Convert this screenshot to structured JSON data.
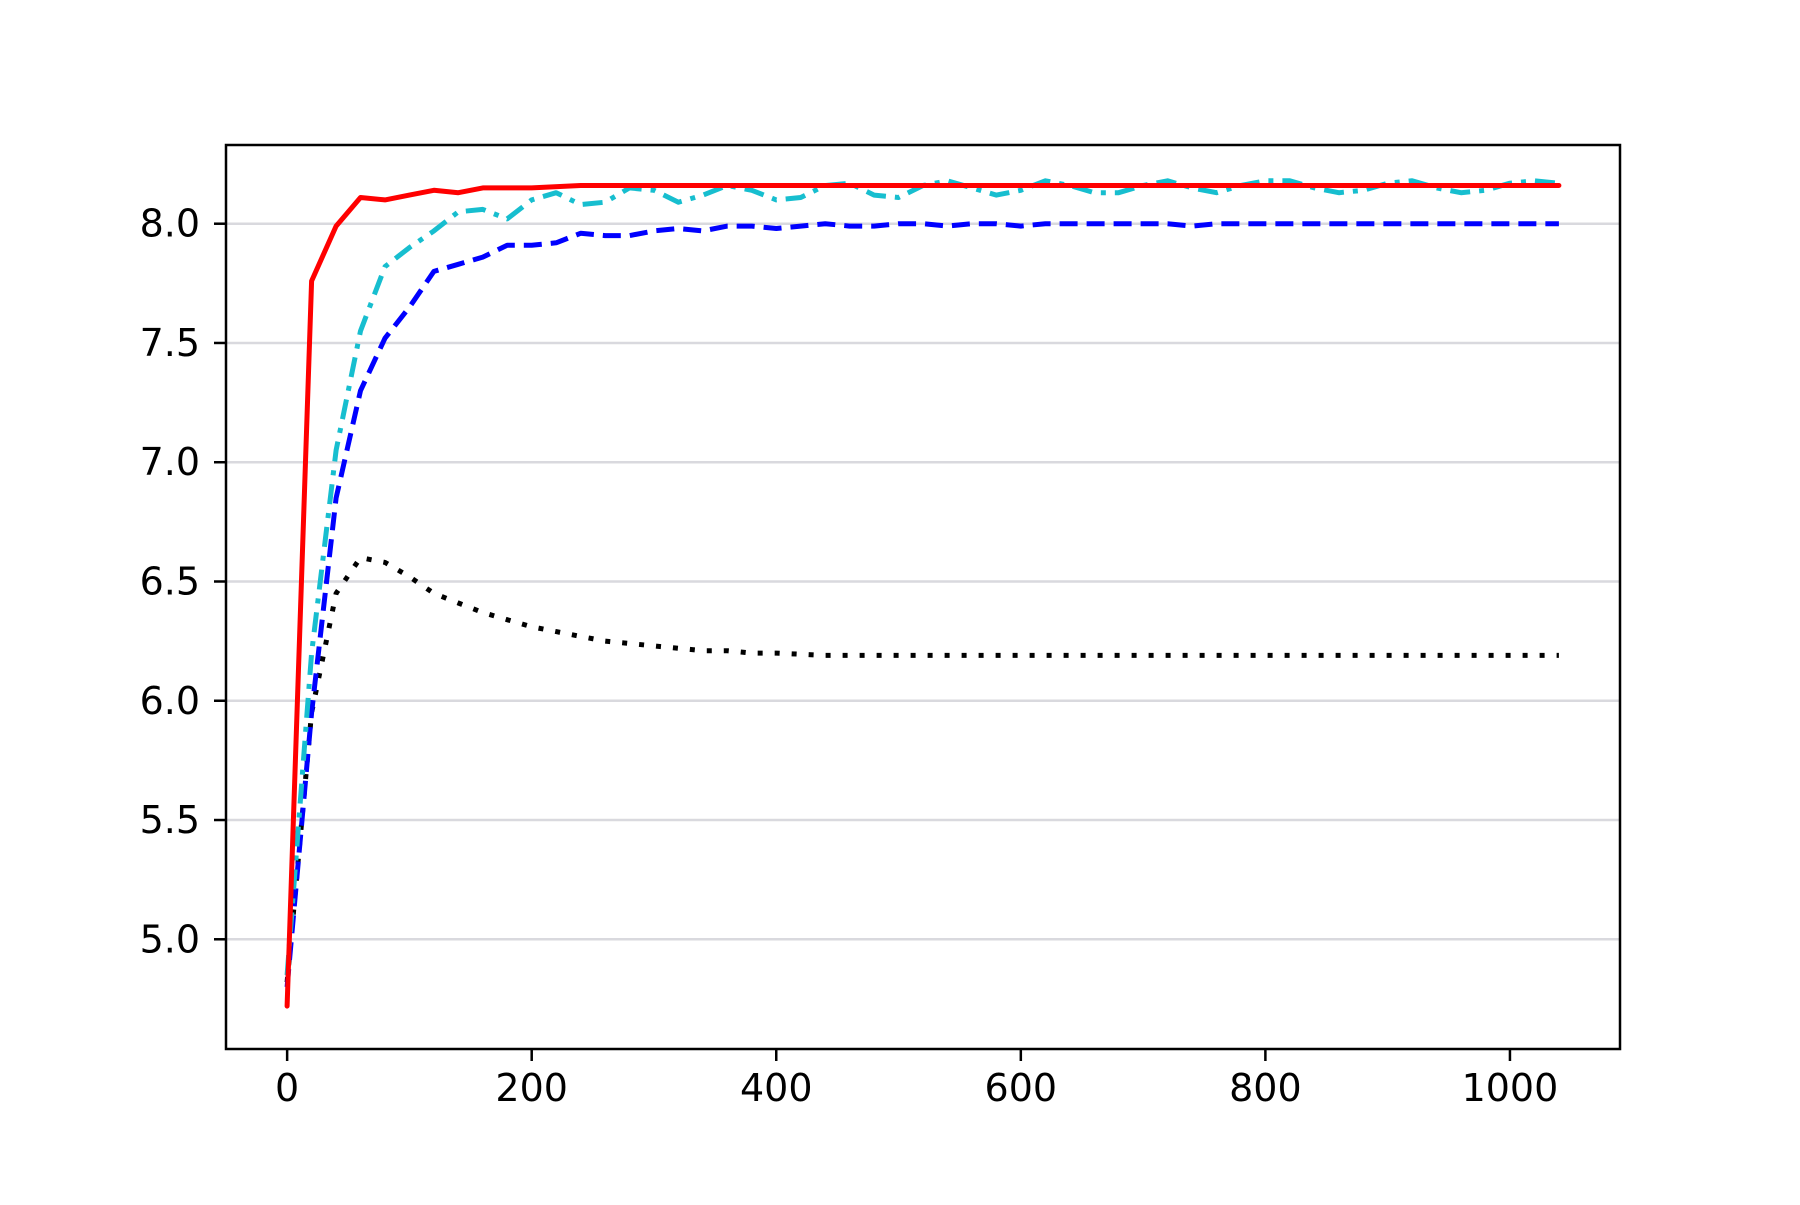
{
  "chart_data": {
    "type": "line",
    "title": "",
    "xlabel": "",
    "ylabel": "",
    "xlim": [
      -50,
      1090
    ],
    "ylim": [
      4.54,
      8.33
    ],
    "x_ticks": [
      0,
      200,
      400,
      600,
      800,
      1000
    ],
    "x_tick_labels": [
      "0",
      "200",
      "400",
      "600",
      "800",
      "1000"
    ],
    "y_ticks": [
      5.0,
      5.5,
      6.0,
      6.5,
      7.0,
      7.5,
      8.0
    ],
    "y_tick_labels": [
      "5.0",
      "5.5",
      "6.0",
      "6.5",
      "7.0",
      "7.5",
      "8.0"
    ],
    "grid": "horizontal",
    "legend": "none",
    "series": [
      {
        "style": "dotted",
        "color": "#000000",
        "points": [
          [
            0,
            4.82
          ],
          [
            20,
            5.95
          ],
          [
            40,
            6.45
          ],
          [
            60,
            6.6
          ],
          [
            80,
            6.58
          ],
          [
            100,
            6.52
          ],
          [
            120,
            6.45
          ],
          [
            140,
            6.41
          ],
          [
            160,
            6.37
          ],
          [
            180,
            6.34
          ],
          [
            200,
            6.31
          ],
          [
            220,
            6.29
          ],
          [
            240,
            6.27
          ],
          [
            260,
            6.25
          ],
          [
            280,
            6.24
          ],
          [
            300,
            6.23
          ],
          [
            320,
            6.22
          ],
          [
            340,
            6.21
          ],
          [
            360,
            6.21
          ],
          [
            380,
            6.2
          ],
          [
            400,
            6.2
          ],
          [
            440,
            6.19
          ],
          [
            480,
            6.19
          ],
          [
            520,
            6.19
          ],
          [
            560,
            6.19
          ],
          [
            600,
            6.19
          ],
          [
            640,
            6.19
          ],
          [
            680,
            6.19
          ],
          [
            720,
            6.19
          ],
          [
            760,
            6.19
          ],
          [
            800,
            6.19
          ],
          [
            840,
            6.19
          ],
          [
            880,
            6.19
          ],
          [
            920,
            6.19
          ],
          [
            960,
            6.19
          ],
          [
            1000,
            6.19
          ],
          [
            1040,
            6.19
          ]
        ]
      },
      {
        "style": "dashed",
        "color": "#0000ff",
        "points": [
          [
            0,
            4.8
          ],
          [
            20,
            5.95
          ],
          [
            40,
            6.85
          ],
          [
            60,
            7.3
          ],
          [
            80,
            7.52
          ],
          [
            100,
            7.65
          ],
          [
            120,
            7.8
          ],
          [
            140,
            7.83
          ],
          [
            160,
            7.86
          ],
          [
            180,
            7.91
          ],
          [
            200,
            7.91
          ],
          [
            220,
            7.92
          ],
          [
            240,
            7.96
          ],
          [
            260,
            7.95
          ],
          [
            280,
            7.95
          ],
          [
            300,
            7.97
          ],
          [
            320,
            7.98
          ],
          [
            340,
            7.97
          ],
          [
            360,
            7.99
          ],
          [
            380,
            7.99
          ],
          [
            400,
            7.98
          ],
          [
            420,
            7.99
          ],
          [
            440,
            8.0
          ],
          [
            460,
            7.99
          ],
          [
            480,
            7.99
          ],
          [
            500,
            8.0
          ],
          [
            520,
            8.0
          ],
          [
            540,
            7.99
          ],
          [
            560,
            8.0
          ],
          [
            580,
            8.0
          ],
          [
            600,
            7.99
          ],
          [
            620,
            8.0
          ],
          [
            640,
            8.0
          ],
          [
            660,
            8.0
          ],
          [
            680,
            8.0
          ],
          [
            700,
            8.0
          ],
          [
            720,
            8.0
          ],
          [
            740,
            7.99
          ],
          [
            760,
            8.0
          ],
          [
            780,
            8.0
          ],
          [
            800,
            8.0
          ],
          [
            820,
            8.0
          ],
          [
            840,
            8.0
          ],
          [
            860,
            8.0
          ],
          [
            880,
            8.0
          ],
          [
            900,
            8.0
          ],
          [
            920,
            8.0
          ],
          [
            940,
            8.0
          ],
          [
            960,
            8.0
          ],
          [
            980,
            8.0
          ],
          [
            1000,
            8.0
          ],
          [
            1020,
            8.0
          ],
          [
            1040,
            8.0
          ]
        ]
      },
      {
        "style": "dashdot",
        "color": "#17becf",
        "points": [
          [
            0,
            4.85
          ],
          [
            20,
            6.2
          ],
          [
            40,
            7.05
          ],
          [
            60,
            7.55
          ],
          [
            80,
            7.82
          ],
          [
            100,
            7.9
          ],
          [
            120,
            7.97
          ],
          [
            140,
            8.05
          ],
          [
            160,
            8.06
          ],
          [
            180,
            8.02
          ],
          [
            200,
            8.1
          ],
          [
            220,
            8.13
          ],
          [
            240,
            8.08
          ],
          [
            260,
            8.09
          ],
          [
            280,
            8.15
          ],
          [
            300,
            8.14
          ],
          [
            320,
            8.09
          ],
          [
            340,
            8.12
          ],
          [
            360,
            8.16
          ],
          [
            380,
            8.14
          ],
          [
            400,
            8.1
          ],
          [
            420,
            8.11
          ],
          [
            440,
            8.16
          ],
          [
            460,
            8.17
          ],
          [
            480,
            8.12
          ],
          [
            500,
            8.11
          ],
          [
            520,
            8.16
          ],
          [
            540,
            8.18
          ],
          [
            560,
            8.15
          ],
          [
            580,
            8.12
          ],
          [
            600,
            8.14
          ],
          [
            620,
            8.18
          ],
          [
            640,
            8.16
          ],
          [
            660,
            8.13
          ],
          [
            680,
            8.13
          ],
          [
            700,
            8.16
          ],
          [
            720,
            8.18
          ],
          [
            740,
            8.15
          ],
          [
            760,
            8.13
          ],
          [
            780,
            8.16
          ],
          [
            800,
            8.18
          ],
          [
            820,
            8.18
          ],
          [
            840,
            8.15
          ],
          [
            860,
            8.13
          ],
          [
            880,
            8.14
          ],
          [
            900,
            8.17
          ],
          [
            920,
            8.18
          ],
          [
            940,
            8.15
          ],
          [
            960,
            8.13
          ],
          [
            980,
            8.14
          ],
          [
            1000,
            8.17
          ],
          [
            1020,
            8.18
          ],
          [
            1040,
            8.17
          ]
        ]
      },
      {
        "style": "solid",
        "color": "#ff0000",
        "points": [
          [
            0,
            4.72
          ],
          [
            20,
            7.76
          ],
          [
            40,
            7.99
          ],
          [
            60,
            8.11
          ],
          [
            80,
            8.1
          ],
          [
            100,
            8.12
          ],
          [
            120,
            8.14
          ],
          [
            140,
            8.13
          ],
          [
            160,
            8.15
          ],
          [
            200,
            8.15
          ],
          [
            240,
            8.16
          ],
          [
            300,
            8.16
          ],
          [
            400,
            8.16
          ],
          [
            500,
            8.16
          ],
          [
            600,
            8.16
          ],
          [
            700,
            8.16
          ],
          [
            800,
            8.16
          ],
          [
            900,
            8.16
          ],
          [
            1000,
            8.16
          ],
          [
            1040,
            8.16
          ]
        ]
      }
    ]
  }
}
